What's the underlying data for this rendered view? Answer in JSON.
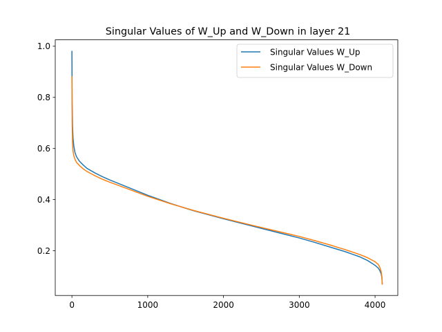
{
  "chart_data": {
    "type": "line",
    "title": "Singular Values of W_Up and W_Down in layer 21",
    "xlabel": "",
    "ylabel": "",
    "xlim": [
      -220,
      4300
    ],
    "ylim": [
      0.025,
      1.025
    ],
    "xticks": [
      0,
      1000,
      2000,
      3000,
      4000
    ],
    "yticks": [
      0.2,
      0.4,
      0.6,
      0.8,
      1.0
    ],
    "xtick_labels": [
      "0",
      "1000",
      "2000",
      "3000",
      "4000"
    ],
    "ytick_labels": [
      "0.2",
      "0.4",
      "0.6",
      "0.8",
      "1.0"
    ],
    "grid": false,
    "legend_position": "top-right",
    "series": [
      {
        "name": "Singular Values W_Up",
        "color": "#1f77b4",
        "x": [
          0,
          3,
          8,
          15,
          25,
          40,
          60,
          100,
          150,
          200,
          300,
          400,
          500,
          700,
          1000,
          1300,
          1600,
          2000,
          2400,
          2800,
          3000,
          3200,
          3400,
          3600,
          3800,
          3900,
          4000,
          4040,
          4060,
          4080,
          4090,
          4095
        ],
        "y": [
          0.98,
          0.78,
          0.69,
          0.64,
          0.61,
          0.585,
          0.568,
          0.55,
          0.535,
          0.522,
          0.505,
          0.49,
          0.477,
          0.453,
          0.417,
          0.385,
          0.357,
          0.325,
          0.295,
          0.265,
          0.25,
          0.233,
          0.215,
          0.197,
          0.176,
          0.162,
          0.143,
          0.133,
          0.124,
          0.11,
          0.095,
          0.07
        ]
      },
      {
        "name": "Singular Values W_Down",
        "color": "#ff7f0e",
        "x": [
          0,
          3,
          8,
          15,
          25,
          40,
          60,
          100,
          150,
          200,
          300,
          400,
          500,
          700,
          1000,
          1300,
          1600,
          2000,
          2400,
          2800,
          3000,
          3200,
          3400,
          3600,
          3800,
          3900,
          4000,
          4040,
          4060,
          4080,
          4090,
          4095
        ],
        "y": [
          0.88,
          0.7,
          0.62,
          0.59,
          0.572,
          0.558,
          0.546,
          0.533,
          0.52,
          0.51,
          0.494,
          0.48,
          0.468,
          0.446,
          0.413,
          0.384,
          0.358,
          0.327,
          0.298,
          0.27,
          0.256,
          0.24,
          0.223,
          0.205,
          0.185,
          0.173,
          0.157,
          0.147,
          0.137,
          0.12,
          0.1,
          0.07
        ]
      }
    ]
  }
}
